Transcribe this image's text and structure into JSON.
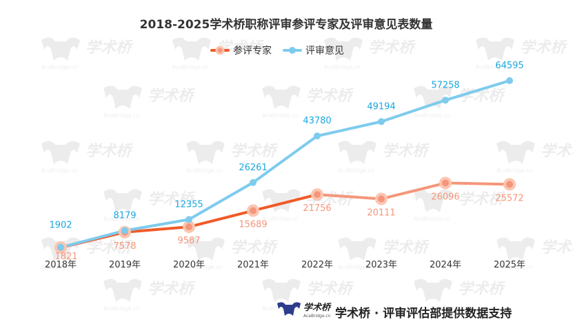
{
  "chart_data": {
    "type": "line",
    "title": "2018-2025学术桥职称评审参评专家及评审意见表数量",
    "categories": [
      "2018年",
      "2019年",
      "2020年",
      "2021年",
      "2022年",
      "2023年",
      "2024年",
      "2025年"
    ],
    "series": [
      {
        "name": "参评专家",
        "values": [
          1821,
          7578,
          9587,
          15689,
          21756,
          20111,
          26096,
          25572
        ],
        "color_solid": "#f05a28",
        "color_light": "#f5967a"
      },
      {
        "name": "评审意见",
        "values": [
          1902,
          8179,
          12355,
          26261,
          43780,
          49194,
          57258,
          64595
        ],
        "color": "#7ecbee",
        "label_color": "#1aa7e0"
      }
    ],
    "ylim": [
      0,
      70000
    ],
    "grid": false,
    "legend_position": "top-center"
  },
  "footer": {
    "logo_text": "学术桥",
    "logo_subtext": "AcaBridge.cn",
    "text": "学术桥 · 评审评估部提供数据支持"
  },
  "watermark": {
    "text": "学术桥",
    "subtext": "AcaBridge.cn"
  }
}
